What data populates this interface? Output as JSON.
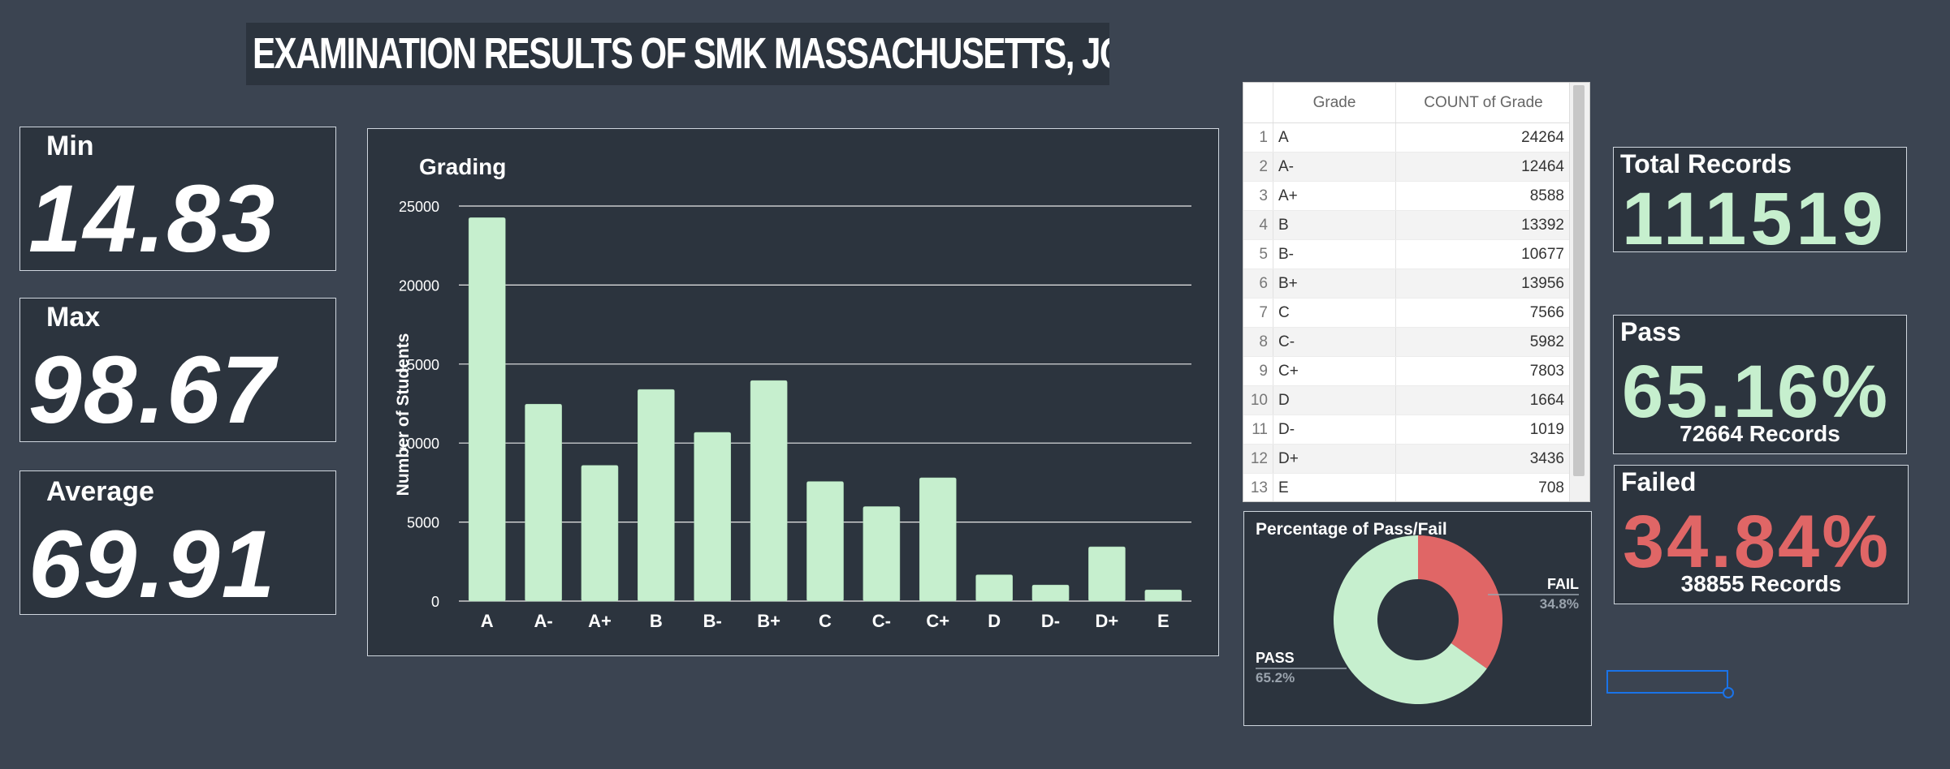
{
  "page_title": "EXAMINATION RESULTS OF SMK MASSACHUSETTS, JOHOR",
  "cards": {
    "min": {
      "label": "Min",
      "value": "14.83"
    },
    "max": {
      "label": "Max",
      "value": "98.67"
    },
    "average": {
      "label": "Average",
      "value": "69.91"
    }
  },
  "table": {
    "headers": [
      "Grade",
      "COUNT of Grade"
    ],
    "rows": [
      {
        "idx": "1",
        "grade": "A",
        "count": "24264"
      },
      {
        "idx": "2",
        "grade": "A-",
        "count": "12464"
      },
      {
        "idx": "3",
        "grade": "A+",
        "count": "8588"
      },
      {
        "idx": "4",
        "grade": "B",
        "count": "13392"
      },
      {
        "idx": "5",
        "grade": "B-",
        "count": "10677"
      },
      {
        "idx": "6",
        "grade": "B+",
        "count": "13956"
      },
      {
        "idx": "7",
        "grade": "C",
        "count": "7566"
      },
      {
        "idx": "8",
        "grade": "C-",
        "count": "5982"
      },
      {
        "idx": "9",
        "grade": "C+",
        "count": "7803"
      },
      {
        "idx": "10",
        "grade": "D",
        "count": "1664"
      },
      {
        "idx": "11",
        "grade": "D-",
        "count": "1019"
      },
      {
        "idx": "12",
        "grade": "D+",
        "count": "3436"
      },
      {
        "idx": "13",
        "grade": "E",
        "count": "708"
      }
    ]
  },
  "stats": {
    "total": {
      "label": "Total Records",
      "value": "111519"
    },
    "pass": {
      "label": "Pass",
      "value": "65.16%",
      "sub": "72664 Records"
    },
    "failed": {
      "label": "Failed",
      "value": "34.84%",
      "sub": "38855 Records"
    }
  },
  "colors": {
    "bar": "#c6efce",
    "pass": "#c6efce",
    "fail": "#e06666",
    "panel": "#2c343e",
    "background": "#3b4451"
  },
  "chart_data": [
    {
      "type": "bar",
      "title": "Grading",
      "xlabel": "",
      "ylabel": "Number of Students",
      "categories": [
        "A",
        "A-",
        "A+",
        "B",
        "B-",
        "B+",
        "C",
        "C-",
        "C+",
        "D",
        "D-",
        "D+",
        "E"
      ],
      "values": [
        24264,
        12464,
        8588,
        13392,
        10677,
        13956,
        7566,
        5982,
        7803,
        1664,
        1019,
        3436,
        708
      ],
      "ylim": [
        0,
        25000
      ],
      "yticks": [
        0,
        5000,
        10000,
        15000,
        20000,
        25000
      ],
      "grid": true
    },
    {
      "type": "pie",
      "title": "Percentage of Pass/Fail",
      "slices": [
        {
          "label": "FAIL",
          "pct_label": "34.8%",
          "value": 34.84
        },
        {
          "label": "PASS",
          "pct_label": "65.2%",
          "value": 65.16
        }
      ],
      "donut": true
    }
  ]
}
